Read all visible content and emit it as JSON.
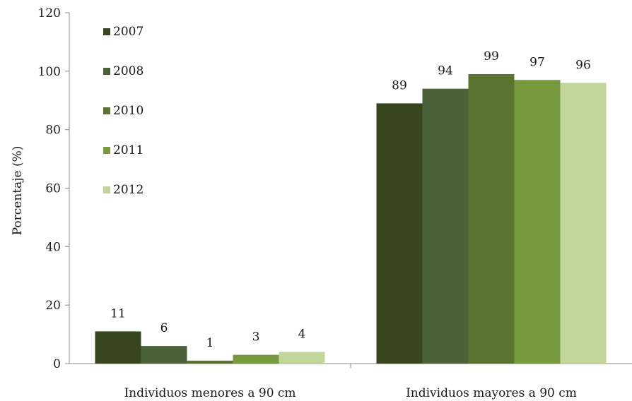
{
  "chart_data": {
    "type": "bar",
    "title": "",
    "xlabel": "",
    "ylabel": "Porcentaje (%)",
    "ylim": [
      0,
      120
    ],
    "yticks": [
      0,
      20,
      40,
      60,
      80,
      100,
      120
    ],
    "grid": false,
    "legend_position": "top-left",
    "categories": [
      "Individuos menores a 90 cm",
      "Individuos mayores a 90 cm"
    ],
    "series": [
      {
        "name": "2007",
        "color": "#37461e",
        "values": [
          11,
          89
        ]
      },
      {
        "name": "2008",
        "color": "#4a6139",
        "values": [
          6,
          94
        ]
      },
      {
        "name": "2010",
        "color": "#5a7430",
        "values": [
          1,
          99
        ]
      },
      {
        "name": "2011",
        "color": "#789a3e",
        "values": [
          3,
          97
        ]
      },
      {
        "name": "2012",
        "color": "#c2d69b",
        "values": [
          4,
          96
        ]
      }
    ]
  }
}
